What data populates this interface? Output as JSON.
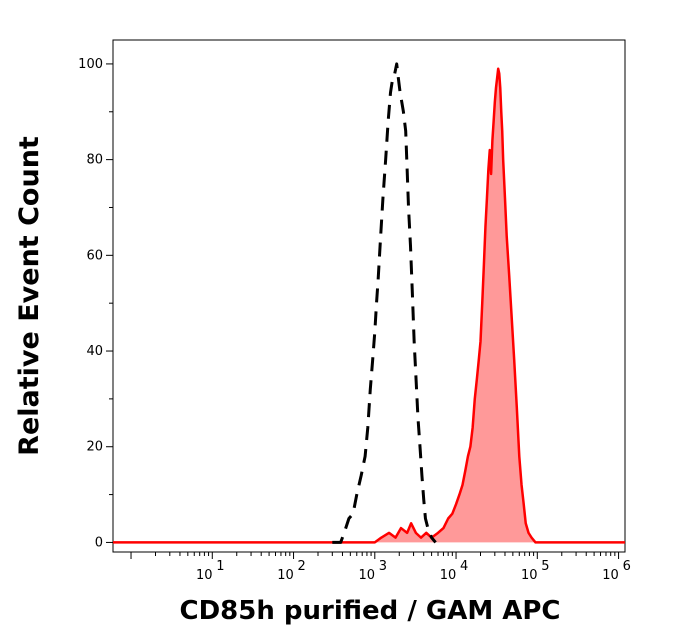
{
  "chart_data": {
    "type": "area",
    "xlabel": "CD85h purified / GAM APC",
    "ylabel": "Relative Event Count",
    "x_scale": "log",
    "xlim": [
      0.6,
      1200000
    ],
    "ylim": [
      -2,
      105
    ],
    "y_ticks": [
      0,
      20,
      40,
      60,
      80,
      100
    ],
    "y_tick_labels": [
      "0",
      "20",
      "40",
      "60",
      "80",
      "100"
    ],
    "x_ticks": [
      {
        "value": 10,
        "base": "10",
        "exp": "1"
      },
      {
        "value": 100,
        "base": "10",
        "exp": "2"
      },
      {
        "value": 1000,
        "base": "10",
        "exp": "3"
      },
      {
        "value": 10000,
        "base": "10",
        "exp": "4"
      },
      {
        "value": 100000,
        "base": "10",
        "exp": "5"
      },
      {
        "value": 1000000,
        "base": "10",
        "exp": "6"
      }
    ],
    "series": [
      {
        "style": "dashed",
        "color": "#000000",
        "points": [
          [
            300,
            0
          ],
          [
            380,
            0
          ],
          [
            420,
            2
          ],
          [
            480,
            5
          ],
          [
            540,
            6
          ],
          [
            600,
            10
          ],
          [
            680,
            14
          ],
          [
            760,
            18
          ],
          [
            820,
            24
          ],
          [
            880,
            32
          ],
          [
            940,
            38
          ],
          [
            1000,
            44
          ],
          [
            1050,
            50
          ],
          [
            1100,
            55
          ],
          [
            1180,
            64
          ],
          [
            1260,
            72
          ],
          [
            1360,
            80
          ],
          [
            1460,
            88
          ],
          [
            1560,
            94
          ],
          [
            1660,
            97
          ],
          [
            1760,
            98
          ],
          [
            1860,
            100
          ],
          [
            1950,
            97
          ],
          [
            2050,
            94
          ],
          [
            2150,
            92
          ],
          [
            2250,
            90
          ],
          [
            2400,
            86
          ],
          [
            2500,
            78
          ],
          [
            2600,
            70
          ],
          [
            2750,
            62
          ],
          [
            2900,
            52
          ],
          [
            3050,
            42
          ],
          [
            3200,
            35
          ],
          [
            3400,
            26
          ],
          [
            3600,
            20
          ],
          [
            3800,
            14
          ],
          [
            4000,
            9
          ],
          [
            4200,
            5
          ],
          [
            4500,
            3
          ],
          [
            5000,
            1
          ],
          [
            5600,
            0
          ]
        ]
      },
      {
        "style": "filled",
        "color": "#ff0000",
        "fill": "#ff9999",
        "points": [
          [
            0.6,
            0
          ],
          [
            1000,
            0
          ],
          [
            1200,
            1
          ],
          [
            1500,
            2
          ],
          [
            1800,
            1
          ],
          [
            2100,
            3
          ],
          [
            2500,
            2
          ],
          [
            2800,
            4
          ],
          [
            3200,
            2
          ],
          [
            3700,
            1
          ],
          [
            4300,
            2
          ],
          [
            5000,
            1
          ],
          [
            6000,
            2
          ],
          [
            7000,
            3
          ],
          [
            8000,
            5
          ],
          [
            9000,
            6
          ],
          [
            10000,
            8
          ],
          [
            11000,
            10
          ],
          [
            12000,
            12
          ],
          [
            13000,
            15
          ],
          [
            14000,
            18
          ],
          [
            15000,
            20
          ],
          [
            16000,
            24
          ],
          [
            17000,
            30
          ],
          [
            18000,
            34
          ],
          [
            19000,
            38
          ],
          [
            20000,
            42
          ],
          [
            21000,
            50
          ],
          [
            22000,
            58
          ],
          [
            23000,
            66
          ],
          [
            24000,
            72
          ],
          [
            25000,
            78
          ],
          [
            26000,
            82
          ],
          [
            27000,
            77
          ],
          [
            28000,
            84
          ],
          [
            29000,
            88
          ],
          [
            30000,
            92
          ],
          [
            31000,
            95
          ],
          [
            32000,
            97
          ],
          [
            33000,
            99
          ],
          [
            34000,
            98
          ],
          [
            35000,
            95
          ],
          [
            36000,
            90
          ],
          [
            37000,
            86
          ],
          [
            38000,
            80
          ],
          [
            40000,
            72
          ],
          [
            42000,
            64
          ],
          [
            45000,
            56
          ],
          [
            48000,
            48
          ],
          [
            52000,
            38
          ],
          [
            56000,
            28
          ],
          [
            60000,
            18
          ],
          [
            64000,
            12
          ],
          [
            68000,
            8
          ],
          [
            72000,
            4
          ],
          [
            78000,
            2
          ],
          [
            85000,
            1
          ],
          [
            95000,
            0
          ],
          [
            1200000,
            0
          ]
        ]
      }
    ]
  }
}
